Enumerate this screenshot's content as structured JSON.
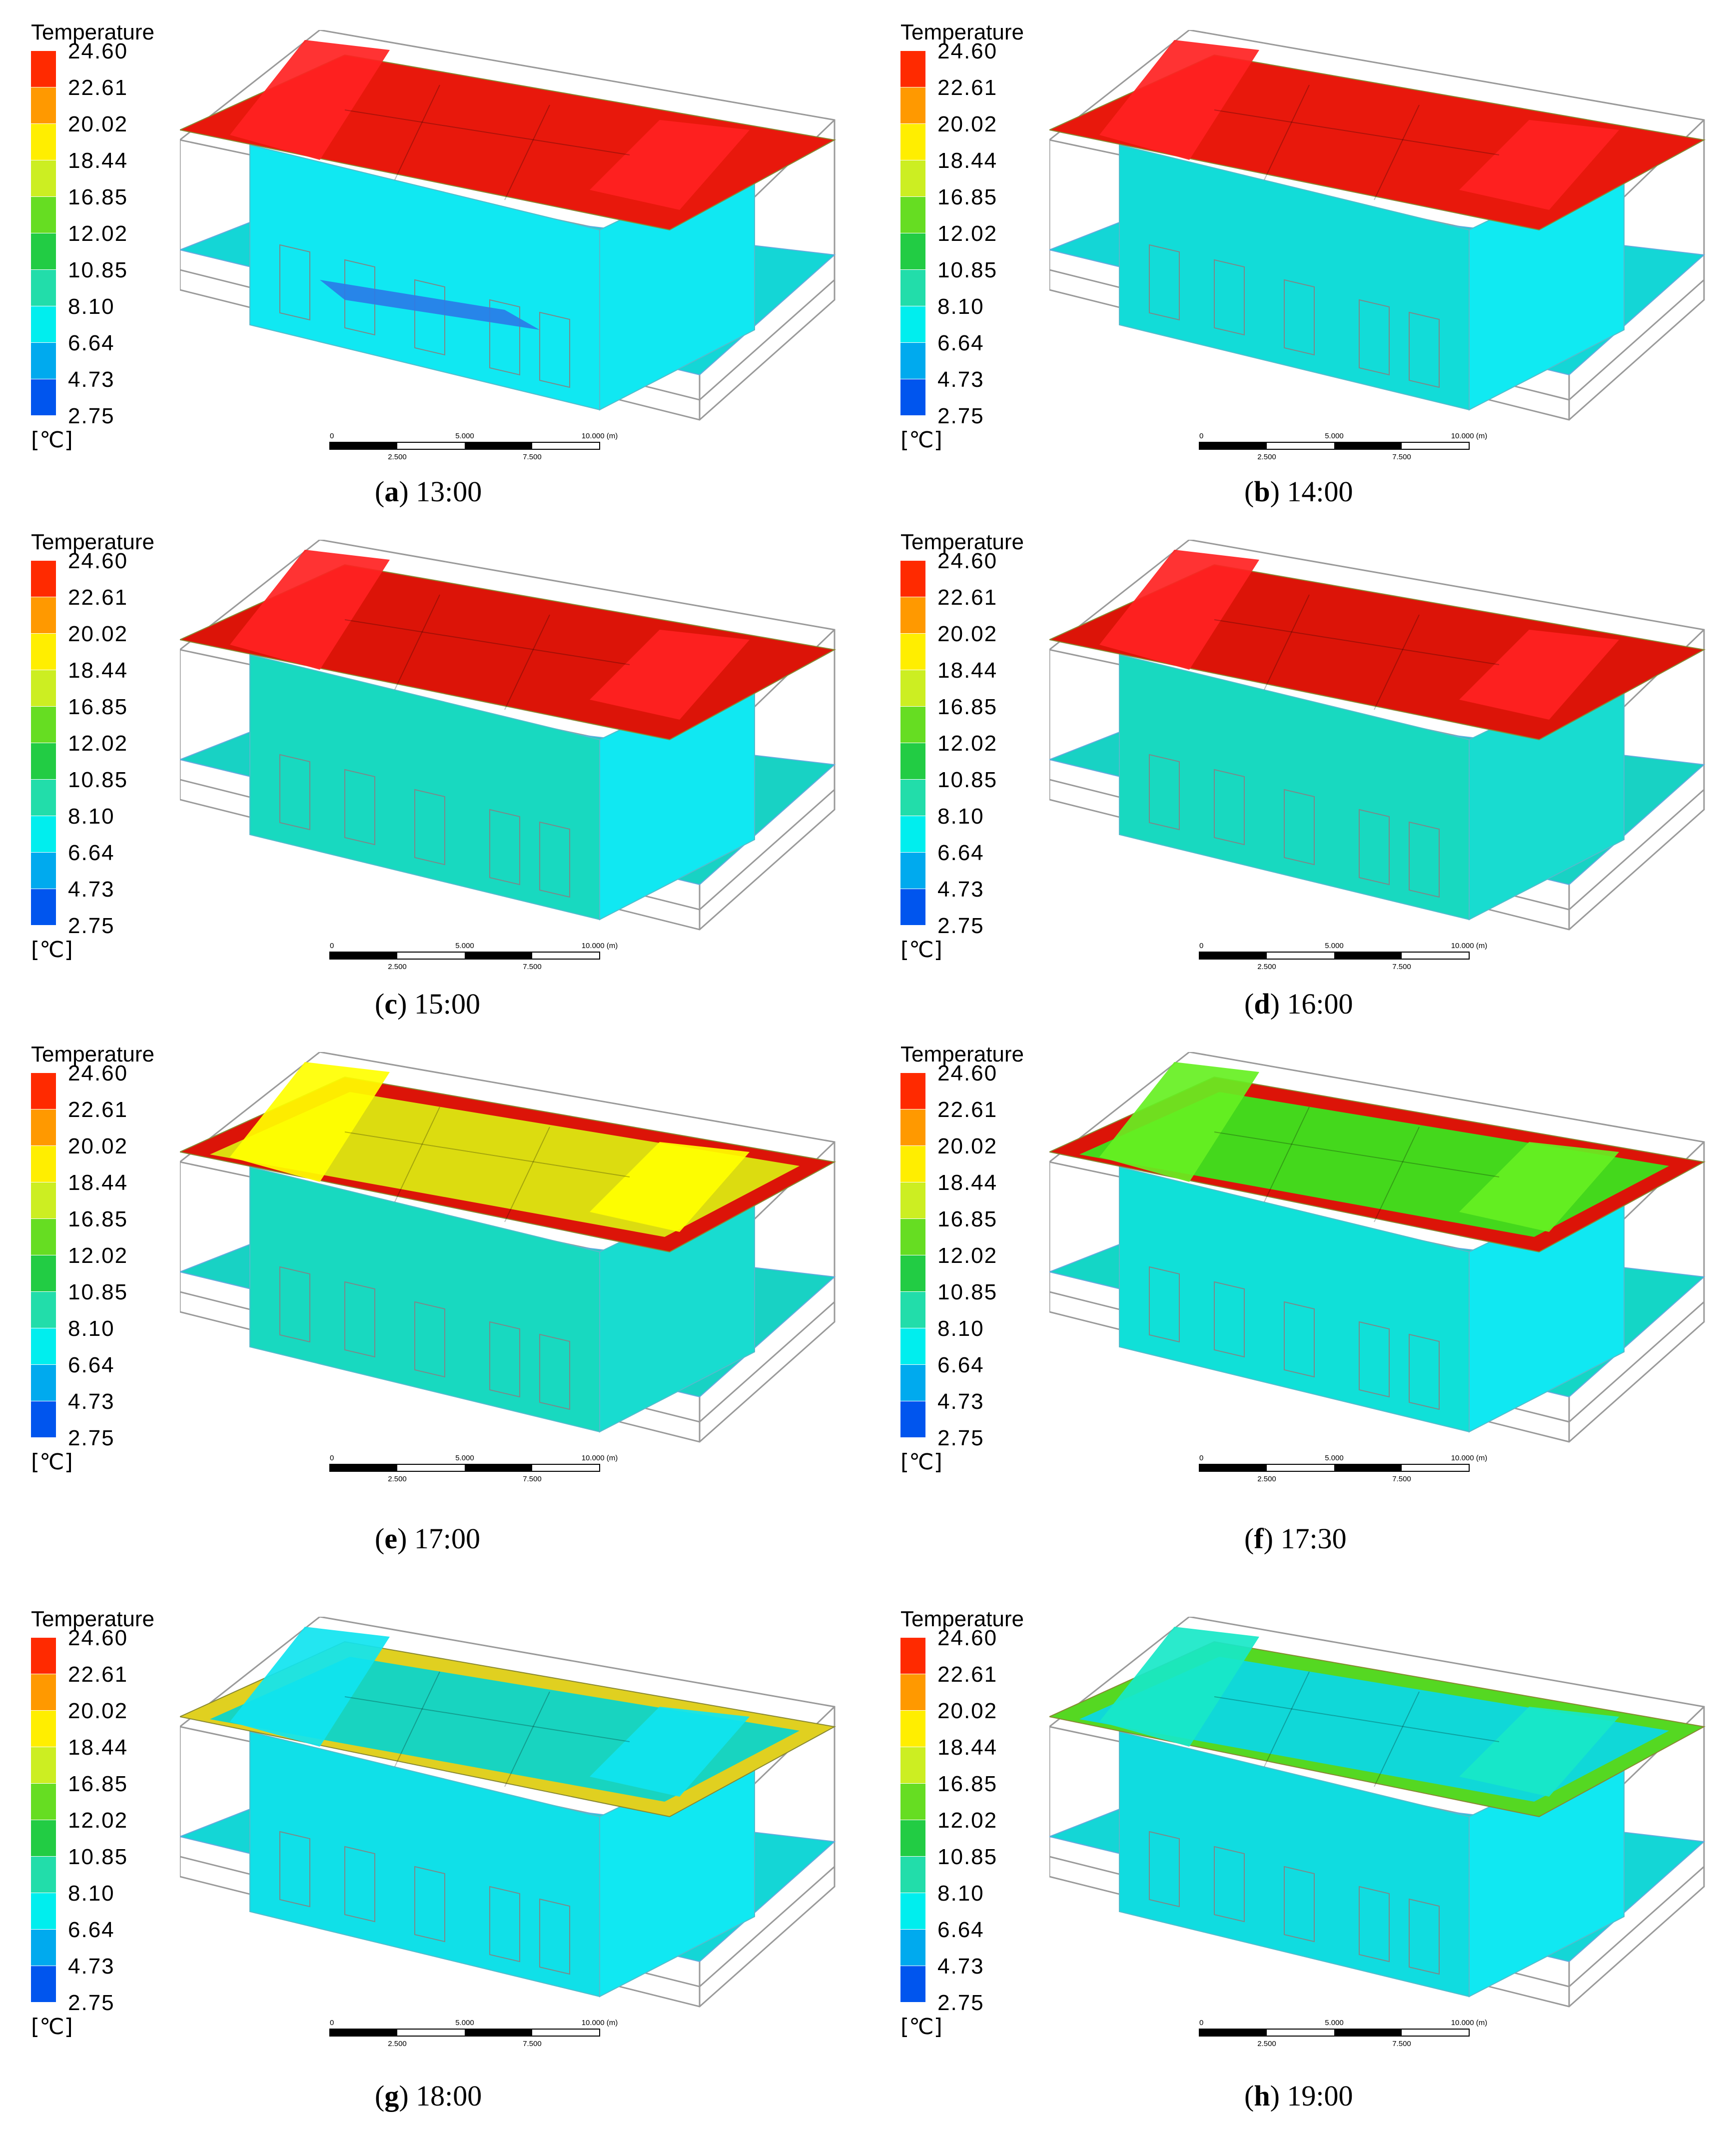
{
  "legend": {
    "title": "Temperature",
    "unit": "[℃]",
    "ticks": [
      "24.60",
      "22.61",
      "20.02",
      "18.44",
      "16.85",
      "12.02",
      "10.85",
      "8.10",
      "6.64",
      "4.73",
      "2.75"
    ],
    "colors": [
      "#ff2a00",
      "#ff9900",
      "#ffee00",
      "#ccee22",
      "#66dd22",
      "#22cc44",
      "#22ddaa",
      "#00eeee",
      "#00aaee",
      "#0055ee"
    ]
  },
  "scale_bar": {
    "labels_top": [
      "0",
      "5.000",
      "10.000 (m)"
    ],
    "labels_bottom": [
      "2.500",
      "7.500"
    ]
  },
  "panels": [
    {
      "letter": "a",
      "time": "13:00",
      "roof": "#e8180c",
      "ridge": "#ff2222",
      "front_wall": "#10e8f2",
      "side_wall": "#10e8f2",
      "floor": "#14d6d6",
      "roof_border": "#e8180c",
      "spot": "#2a7ae8"
    },
    {
      "letter": "b",
      "time": "14:00",
      "roof": "#e8180c",
      "ridge": "#ff2222",
      "front_wall": "#12dcd8",
      "side_wall": "#10eaf2",
      "floor": "#14d6d6",
      "roof_border": "#e8180c",
      "spot": ""
    },
    {
      "letter": "c",
      "time": "15:00",
      "roof": "#dc1408",
      "ridge": "#ff2222",
      "front_wall": "#18d9c0",
      "side_wall": "#10e8f2",
      "floor": "#18d2c4",
      "roof_border": "#dc1408",
      "spot": ""
    },
    {
      "letter": "d",
      "time": "16:00",
      "roof": "#dc1408",
      "ridge": "#ff2222",
      "front_wall": "#18d9c0",
      "side_wall": "#18dcd0",
      "floor": "#18d2c4",
      "roof_border": "#dc1408",
      "spot": ""
    },
    {
      "letter": "e",
      "time": "17:00",
      "roof": "#dcdc10",
      "ridge": "#ffff00",
      "front_wall": "#18d9c0",
      "side_wall": "#18dcd0",
      "floor": "#18d2c4",
      "roof_border": "#dc1408",
      "spot": ""
    },
    {
      "letter": "f",
      "time": "17:30",
      "roof": "#44d81c",
      "ridge": "#66f022",
      "front_wall": "#10e0d8",
      "side_wall": "#10e8f2",
      "floor": "#14d6c6",
      "roof_border": "#dc1408",
      "spot": ""
    },
    {
      "letter": "g",
      "time": "18:00",
      "roof": "#18d4c0",
      "ridge": "#10e4f0",
      "front_wall": "#10e0e8",
      "side_wall": "#10e8f2",
      "floor": "#14d6d6",
      "roof_border": "#e0d020",
      "spot": ""
    },
    {
      "letter": "h",
      "time": "19:00",
      "roof": "#10d8d8",
      "ridge": "#18e8c8",
      "front_wall": "#10dce0",
      "side_wall": "#10e8f2",
      "floor": "#14d6d6",
      "roof_border": "#55d822",
      "spot": ""
    }
  ]
}
